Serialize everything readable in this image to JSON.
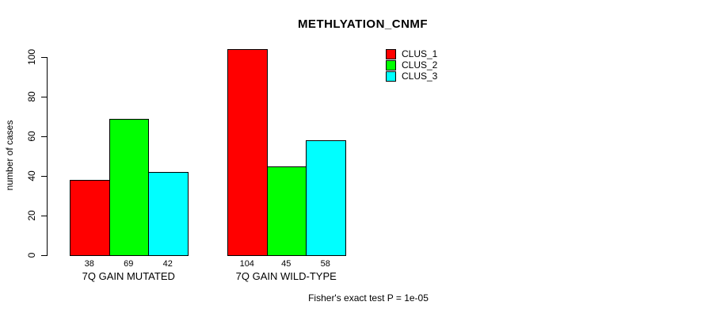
{
  "chart_data": {
    "type": "bar",
    "title": "METHLYATION_CNMF",
    "xlabel": "",
    "ylabel": "number of cases",
    "categories": [
      "7Q GAIN MUTATED",
      "7Q GAIN WILD-TYPE"
    ],
    "series": [
      {
        "name": "CLUS_1",
        "color": "#ff0000",
        "values": [
          38,
          104
        ]
      },
      {
        "name": "CLUS_2",
        "color": "#00ff00",
        "values": [
          69,
          45
        ]
      },
      {
        "name": "CLUS_3",
        "color": "#00ffff",
        "values": [
          42,
          58
        ]
      }
    ],
    "yticks": [
      0,
      20,
      40,
      60,
      80,
      100
    ],
    "ylim": [
      0,
      104
    ],
    "grid": false,
    "legend_position": "top-right",
    "bar_value_labels": true,
    "annotation": "Fisher's exact test P = 1e-05"
  }
}
